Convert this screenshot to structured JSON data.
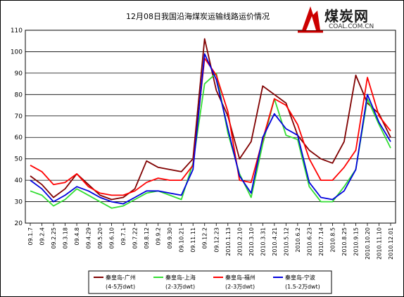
{
  "chart_data": {
    "type": "line",
    "title": "12月08日我国沿海煤炭运输线路运价情况",
    "ylim": [
      20,
      110
    ],
    "yticks": [
      20,
      30,
      40,
      50,
      60,
      70,
      80,
      90,
      100,
      110
    ],
    "grid": true,
    "legend_position": "bottom",
    "categories": [
      "09.1.7",
      "09.2.4",
      "09.2.25",
      "09.3.18",
      "09.4.8",
      "09.4.29",
      "09.5.20",
      "09.6.10",
      "09.7.1",
      "09.7.22",
      "09.8.12",
      "09.9.2",
      "09.9.30",
      "09.10.21",
      "09.11.11",
      "09.12.2",
      "09.12.23",
      "2010.1.13",
      "2010.2.10",
      "2010.3.10",
      "2010.3.31",
      "2010.4.21",
      "2010.5.12",
      "2010.6.2",
      "2010.6.23",
      "2010.7.14",
      "2010.8.5",
      "2010.8.25",
      "2010.9.15",
      "2010.10.20",
      "2010.11.10",
      "2010.12.01"
    ],
    "series": [
      {
        "name": "秦皇岛-广州",
        "name_line2": "(4-5万dwt)",
        "color": "#800000",
        "values": [
          42,
          38,
          32,
          36,
          43,
          38,
          33,
          31,
          32,
          36,
          49,
          46,
          45,
          44,
          50,
          106,
          82,
          70,
          50,
          58,
          84,
          80,
          76,
          61,
          54,
          50,
          48,
          58,
          89,
          76,
          71,
          60
        ]
      },
      {
        "name": "秦皇岛-上海",
        "name_line2": "(2-3万dwt)",
        "color": "#33dd33",
        "values": [
          35,
          33,
          28,
          31,
          36,
          33,
          30,
          27,
          28,
          31,
          34,
          35,
          33,
          31,
          48,
          85,
          90,
          62,
          43,
          32,
          57,
          78,
          61,
          59,
          37,
          30,
          30,
          37,
          45,
          78,
          66,
          55
        ]
      },
      {
        "name": "秦皇岛-福州",
        "name_line2": "(2-3万dwt)",
        "color": "#ff0000",
        "values": [
          47,
          44,
          38,
          39,
          43,
          37,
          34,
          33,
          33,
          35,
          39,
          41,
          40,
          40,
          47,
          97,
          89,
          72,
          40,
          39,
          59,
          78,
          75,
          66,
          50,
          40,
          40,
          46,
          54,
          88,
          70,
          63
        ]
      },
      {
        "name": "秦皇岛-宁波",
        "name_line2": "(1.5-2万dwt)",
        "color": "#0000dd",
        "values": [
          40,
          36,
          30,
          33,
          37,
          35,
          32,
          30,
          29,
          32,
          35,
          35,
          34,
          33,
          45,
          99,
          87,
          64,
          42,
          34,
          60,
          71,
          64,
          61,
          39,
          32,
          31,
          35,
          45,
          80,
          67,
          58
        ]
      }
    ]
  },
  "logo": {
    "name": "煤炭网",
    "url_text": "COAL.COM.CN"
  }
}
